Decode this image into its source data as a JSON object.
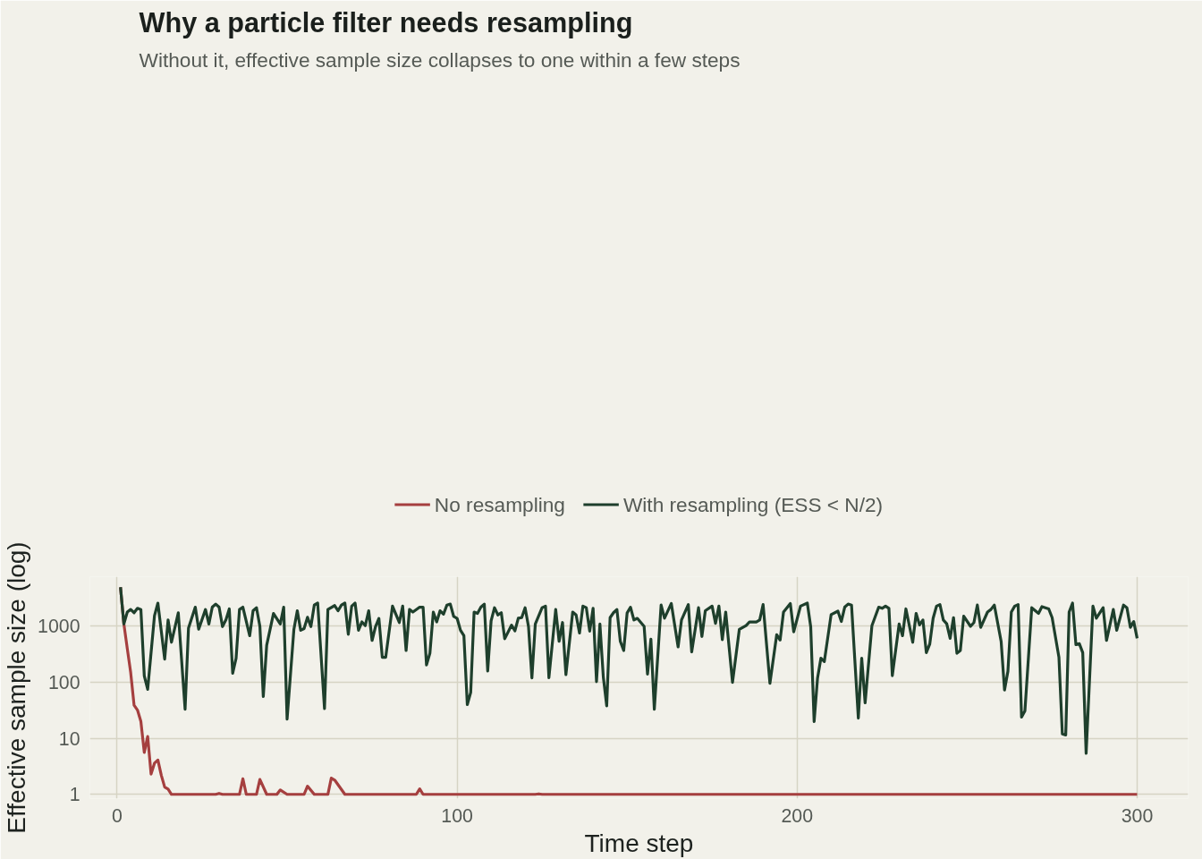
{
  "chart_data": {
    "type": "line",
    "title": "Why a particle filter needs resampling",
    "subtitle": "Without it, effective sample size collapses to one within a few steps",
    "xlabel": "Time step",
    "ylabel": "Effective sample size (log)",
    "log": "y",
    "grid": true,
    "legend": "top",
    "xlim": [
      -8,
      315
    ],
    "ylim": [
      0.84,
      7700
    ],
    "xticks": [
      0,
      100,
      200,
      300
    ],
    "yticks": [
      1,
      10,
      100,
      1000
    ],
    "series": [
      {
        "name": "No resampling",
        "color": "#a53f3f",
        "x": [
          1,
          2,
          3,
          4,
          5,
          6,
          7,
          8,
          9,
          10,
          11,
          12,
          13,
          14,
          15,
          16,
          29,
          30,
          31,
          36,
          37,
          38,
          41,
          42,
          44,
          47,
          48,
          50,
          55,
          56,
          58,
          62,
          63,
          64,
          67,
          88,
          89,
          90,
          123,
          124,
          125,
          300
        ],
        "values": [
          5000,
          1100,
          400,
          150,
          39,
          32,
          20,
          5.6,
          10.8,
          2.3,
          3.6,
          4.1,
          2.2,
          1.35,
          1.24,
          1,
          1,
          1.04,
          1,
          1,
          1.9,
          1,
          1,
          1.85,
          1,
          1,
          1.2,
          1,
          1,
          1.4,
          1,
          1,
          1.95,
          1.8,
          1,
          1,
          1.25,
          1,
          1,
          1.02,
          1,
          1
        ]
      },
      {
        "name": "With resampling (ESS < N/2)",
        "color": "#1e3f2c",
        "x": [
          1,
          2,
          3,
          4,
          5,
          6,
          7,
          8,
          9,
          11,
          12,
          14,
          15,
          16,
          18,
          20,
          21,
          23,
          24,
          26,
          27,
          28,
          29,
          30,
          31,
          32,
          33,
          34,
          35,
          36,
          37,
          39,
          40,
          41,
          42,
          43,
          44,
          46,
          48,
          49,
          50,
          52,
          53,
          54,
          55,
          56,
          57,
          58,
          59,
          61,
          62,
          64,
          65,
          66,
          67,
          68,
          69,
          70,
          71,
          72,
          73,
          74,
          75,
          76,
          77,
          78,
          79,
          81,
          83,
          84,
          85,
          86,
          87,
          89,
          90,
          91,
          92,
          93,
          94,
          95,
          96,
          97,
          98,
          99,
          100,
          101,
          102,
          103,
          104,
          105,
          106,
          107,
          108,
          109,
          110,
          111,
          112,
          113,
          114,
          116,
          117,
          118,
          119,
          120,
          121,
          122,
          123,
          125,
          126,
          127,
          129,
          130,
          131,
          132,
          134,
          135,
          136,
          137,
          138,
          139,
          140,
          141,
          142,
          143,
          144,
          145,
          146,
          147,
          148,
          149,
          150,
          151,
          152,
          153,
          155,
          156,
          157,
          158,
          160,
          161,
          163,
          165,
          166,
          168,
          169,
          171,
          172,
          173,
          175,
          176,
          177,
          178,
          179,
          181,
          183,
          185,
          186,
          188,
          189,
          190,
          192,
          194,
          195,
          196,
          198,
          199,
          201,
          203,
          204,
          205,
          206,
          207,
          208,
          210,
          212,
          213,
          214,
          215,
          216,
          218,
          219,
          220,
          222,
          224,
          225,
          226,
          227,
          228,
          230,
          231,
          232,
          234,
          235,
          236,
          237,
          238,
          239,
          240,
          241,
          242,
          243,
          244,
          245,
          246,
          247,
          248,
          249,
          251,
          252,
          253,
          254,
          256,
          257,
          258,
          260,
          261,
          262,
          263,
          264,
          265,
          266,
          267,
          269,
          271,
          272,
          274,
          275,
          277,
          278,
          279,
          280,
          281,
          282,
          283,
          284,
          285,
          287,
          288,
          290,
          291,
          293,
          294,
          296,
          297,
          298,
          299,
          300
        ],
        "values": [
          5000,
          1100,
          1800,
          2000,
          1750,
          2100,
          2000,
          130,
          75,
          1550,
          2600,
          260,
          1300,
          520,
          1750,
          33,
          930,
          2200,
          890,
          2000,
          1100,
          2200,
          2500,
          2200,
          990,
          1300,
          2050,
          146,
          270,
          2000,
          2200,
          680,
          1900,
          2150,
          1000,
          56,
          460,
          1700,
          1100,
          2200,
          22,
          880,
          1900,
          850,
          910,
          1450,
          990,
          2400,
          2600,
          34,
          2000,
          2350,
          1900,
          2400,
          2600,
          720,
          2300,
          2600,
          850,
          1200,
          1030,
          1900,
          560,
          990,
          1380,
          280,
          280,
          2300,
          1170,
          2300,
          370,
          2000,
          1800,
          2200,
          2200,
          205,
          330,
          1800,
          1200,
          1900,
          1650,
          2400,
          2500,
          1500,
          1390,
          850,
          680,
          40,
          66,
          1800,
          1700,
          2200,
          2500,
          160,
          1250,
          2150,
          1600,
          1750,
          600,
          1050,
          830,
          1400,
          1430,
          2150,
          990,
          120,
          1100,
          2150,
          2300,
          121,
          2000,
          540,
          1170,
          137,
          1800,
          1600,
          760,
          2300,
          2150,
          820,
          2100,
          103,
          1100,
          125,
          38,
          1430,
          1750,
          2000,
          540,
          370,
          1730,
          2200,
          1300,
          1390,
          1000,
          140,
          590,
          33,
          2400,
          1400,
          2560,
          430,
          1300,
          2450,
          350,
          2150,
          660,
          1900,
          2300,
          1130,
          2300,
          580,
          1800,
          100,
          880,
          1030,
          1200,
          1200,
          1300,
          2460,
          96,
          710,
          570,
          1800,
          2550,
          800,
          2300,
          2600,
          980,
          20,
          118,
          270,
          235,
          1620,
          1870,
          1220,
          2200,
          2500,
          2400,
          23,
          270,
          43,
          1030,
          2200,
          2100,
          2300,
          2100,
          132,
          1100,
          680,
          2050,
          520,
          1700,
          1060,
          1300,
          340,
          480,
          1390,
          2300,
          2450,
          1300,
          1110,
          610,
          1430,
          330,
          370,
          1520,
          1000,
          1170,
          2400,
          960,
          1800,
          2000,
          2400,
          540,
          73,
          158,
          1800,
          2300,
          2450,
          24,
          31,
          2150,
          1700,
          2250,
          2050,
          1430,
          280,
          12,
          11.5,
          1800,
          2600,
          470,
          490,
          340,
          5.4,
          2300,
          1400,
          2150,
          560,
          2000,
          850,
          2400,
          2150,
          960,
          1220,
          610
        ]
      }
    ]
  }
}
